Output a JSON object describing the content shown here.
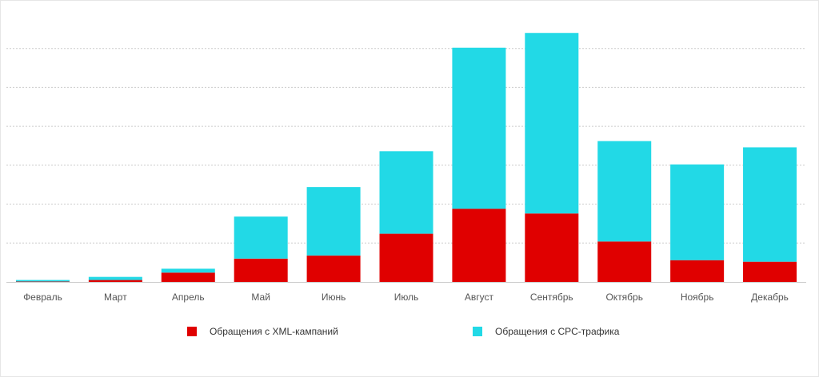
{
  "chart_data": {
    "type": "bar",
    "stacked": true,
    "categories": [
      "Февраль",
      "Март",
      "Апрель",
      "Май",
      "Июнь",
      "Июль",
      "Август",
      "Сентябрь",
      "Октябрь",
      "Ноябрь",
      "Декабрь"
    ],
    "series": [
      {
        "name": "Обращения с XML-кампаний",
        "color": "#e00000",
        "values": [
          0.5,
          2.5,
          12,
          30,
          34,
          62,
          94,
          88,
          52,
          28,
          26
        ]
      },
      {
        "name": "Обращения с CPC-трафика",
        "color": "#22d9e6",
        "values": [
          2,
          4,
          5,
          54,
          88,
          106,
          207,
          232,
          129,
          123,
          147
        ]
      }
    ],
    "ylim": [
      0,
      350
    ],
    "gridlines": [
      50,
      100,
      150,
      200,
      250,
      300
    ],
    "grid": true,
    "legend": "bottom"
  }
}
